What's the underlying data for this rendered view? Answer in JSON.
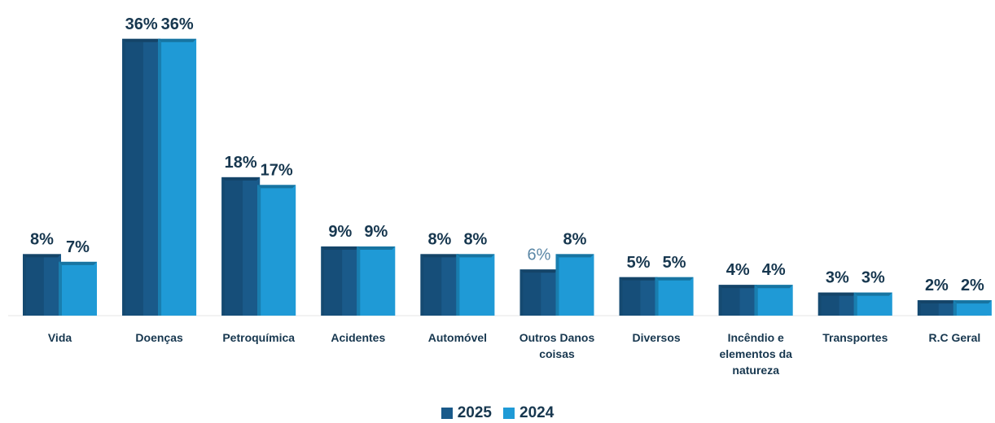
{
  "chart_data": {
    "type": "bar",
    "categories": [
      "Vida",
      "Doenças",
      "Petroquímica",
      "Acidentes",
      "Automóvel",
      "Outros Danos coisas",
      "Diversos",
      "Incêndio e elementos da natureza",
      "Transportes",
      "R.C Geral"
    ],
    "category_lines": [
      [
        "Vida"
      ],
      [
        "Doenças"
      ],
      [
        "Petroquímica"
      ],
      [
        "Acidentes"
      ],
      [
        "Automóvel"
      ],
      [
        "Outros Danos",
        "coisas"
      ],
      [
        "Diversos"
      ],
      [
        "Incêndio e",
        "elementos da",
        "natureza"
      ],
      [
        "Transportes"
      ],
      [
        "R.C Geral"
      ]
    ],
    "series": [
      {
        "name": "2025",
        "values": [
          8,
          36,
          18,
          9,
          8,
          6,
          5,
          4,
          3,
          2
        ],
        "labels": [
          "8%",
          "36%",
          "18%",
          "9%",
          "8%",
          "6%",
          "5%",
          "4%",
          "3%",
          "2%"
        ],
        "color": "#1a5a8a"
      },
      {
        "name": "2024",
        "values": [
          7,
          36,
          17,
          9,
          8,
          8,
          5,
          4,
          3,
          2
        ],
        "labels": [
          "7%",
          "36%",
          "17%",
          "9%",
          "8%",
          "8%",
          "5%",
          "4%",
          "3%",
          "2%"
        ],
        "color": "#1f9ad6"
      }
    ],
    "value_format": "percent",
    "ylim": [
      0,
      36
    ],
    "grid": false,
    "legend_position": "bottom-center"
  }
}
